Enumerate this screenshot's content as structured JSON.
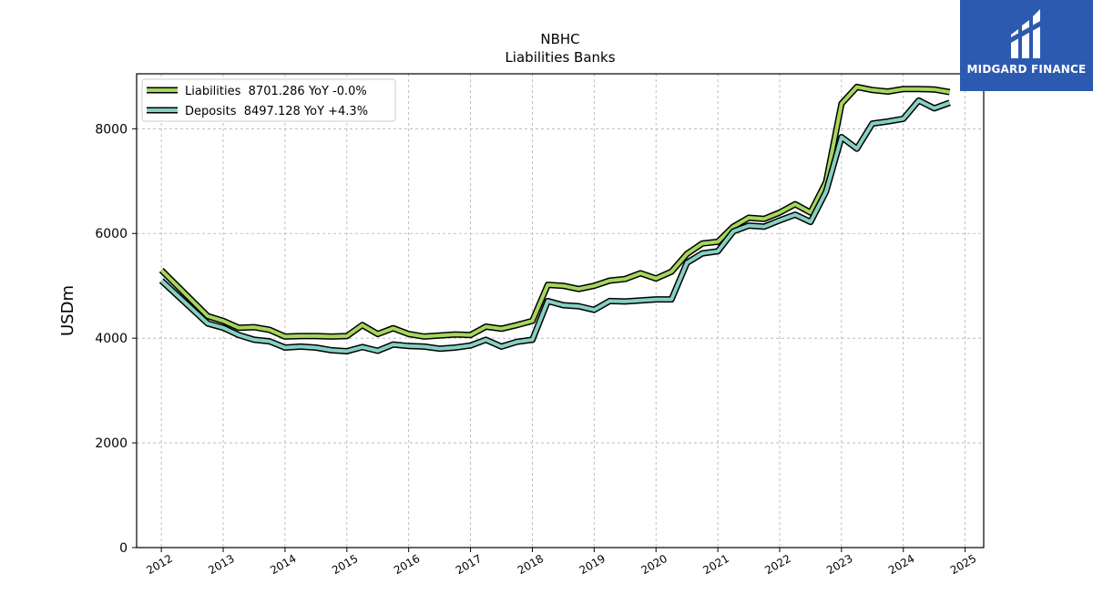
{
  "logo": {
    "text": "MIDGARD FINANCE",
    "background": "#2c5ab0"
  },
  "chart_data": {
    "type": "line",
    "title": "NBHC",
    "subtitle": "Liabilities Banks",
    "xlabel": "",
    "ylabel": "USDm",
    "xlim": [
      2011.6,
      2025.3
    ],
    "ylim": [
      0,
      9050
    ],
    "x_ticks": [
      "2012",
      "2013",
      "2014",
      "2015",
      "2016",
      "2017",
      "2018",
      "2019",
      "2020",
      "2021",
      "2022",
      "2023",
      "2024",
      "2025"
    ],
    "y_ticks": [
      0,
      2000,
      4000,
      6000,
      8000
    ],
    "grid": true,
    "legend_position": "top-left",
    "series": [
      {
        "name": "Liabilities",
        "legend_label": "Liabilities  8701.286 YoY -0.0%",
        "color": "#a6d65b",
        "x": [
          2012.0,
          2012.75,
          2013.0,
          2013.25,
          2013.5,
          2013.75,
          2014.0,
          2014.25,
          2014.5,
          2014.75,
          2015.0,
          2015.25,
          2015.5,
          2015.75,
          2016.0,
          2016.25,
          2016.5,
          2016.75,
          2017.0,
          2017.25,
          2017.5,
          2017.75,
          2018.0,
          2018.25,
          2018.5,
          2018.75,
          2019.0,
          2019.25,
          2019.5,
          2019.75,
          2020.0,
          2020.25,
          2020.5,
          2020.75,
          2021.0,
          2021.25,
          2021.5,
          2021.75,
          2022.0,
          2022.25,
          2022.5,
          2022.75,
          2023.0,
          2023.25,
          2023.5,
          2023.75,
          2024.0,
          2024.25,
          2024.5,
          2024.75
        ],
        "values": [
          5300,
          4420,
          4330,
          4200,
          4210,
          4160,
          4030,
          4040,
          4040,
          4030,
          4040,
          4250,
          4080,
          4190,
          4080,
          4030,
          4050,
          4070,
          4060,
          4220,
          4180,
          4250,
          4330,
          5020,
          5000,
          4940,
          5000,
          5100,
          5130,
          5240,
          5140,
          5270,
          5610,
          5810,
          5840,
          6130,
          6300,
          6280,
          6400,
          6560,
          6400,
          6980,
          8480,
          8800,
          8740,
          8710,
          8760,
          8760,
          8750,
          8700
        ]
      },
      {
        "name": "Deposits",
        "legend_label": "Deposits  8497.128 YoY +4.3%",
        "color": "#86d0c2",
        "x": [
          2012.0,
          2012.75,
          2013.0,
          2013.25,
          2013.5,
          2013.75,
          2014.0,
          2014.25,
          2014.5,
          2014.75,
          2015.0,
          2015.25,
          2015.5,
          2015.75,
          2016.0,
          2016.25,
          2016.5,
          2016.75,
          2017.0,
          2017.25,
          2017.5,
          2017.75,
          2018.0,
          2018.25,
          2018.5,
          2018.75,
          2019.0,
          2019.25,
          2019.5,
          2019.75,
          2020.0,
          2020.25,
          2020.5,
          2020.75,
          2021.0,
          2021.25,
          2021.5,
          2021.75,
          2022.0,
          2022.25,
          2022.5,
          2022.75,
          2023.0,
          2023.25,
          2023.5,
          2023.75,
          2024.0,
          2024.25,
          2024.5,
          2024.75
        ],
        "values": [
          5100,
          4280,
          4200,
          4060,
          3970,
          3940,
          3820,
          3840,
          3820,
          3770,
          3750,
          3830,
          3760,
          3880,
          3850,
          3840,
          3800,
          3820,
          3860,
          3970,
          3840,
          3930,
          3970,
          4710,
          4630,
          4610,
          4540,
          4710,
          4700,
          4720,
          4740,
          4740,
          5440,
          5620,
          5660,
          6040,
          6150,
          6130,
          6250,
          6360,
          6220,
          6800,
          7840,
          7620,
          8100,
          8140,
          8190,
          8540,
          8390,
          8497
        ]
      }
    ]
  }
}
